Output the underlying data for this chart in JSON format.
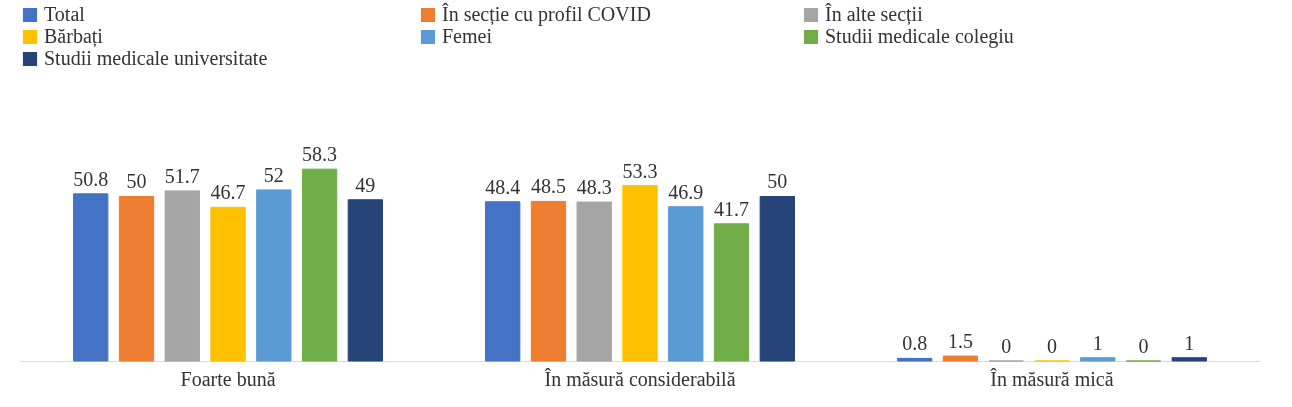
{
  "chart_data": {
    "type": "bar",
    "categories": [
      "Foarte bună",
      "În măsură considerabilă",
      "În măsură mică"
    ],
    "series": [
      {
        "name": "Total",
        "color": "#4472c4",
        "values": [
          50.8,
          48.4,
          0.8
        ]
      },
      {
        "name": "În secție cu profil COVID",
        "color": "#ed7d31",
        "values": [
          50,
          48.5,
          1.5
        ]
      },
      {
        "name": "În alte secții",
        "color": "#a5a5a5",
        "values": [
          51.7,
          48.3,
          0
        ]
      },
      {
        "name": "Bărbați",
        "color": "#ffc000",
        "values": [
          46.7,
          53.3,
          0
        ]
      },
      {
        "name": "Femei",
        "color": "#5b9bd5",
        "values": [
          52,
          46.9,
          1
        ]
      },
      {
        "name": "Studii medicale colegiu",
        "color": "#70ad47",
        "values": [
          58.3,
          41.7,
          0
        ]
      },
      {
        "name": "Studii medicale universitate",
        "color": "#264478",
        "values": [
          49,
          50,
          1
        ]
      }
    ],
    "data_labels": true,
    "legend": "top",
    "grid": false,
    "tick_labels": "x"
  }
}
